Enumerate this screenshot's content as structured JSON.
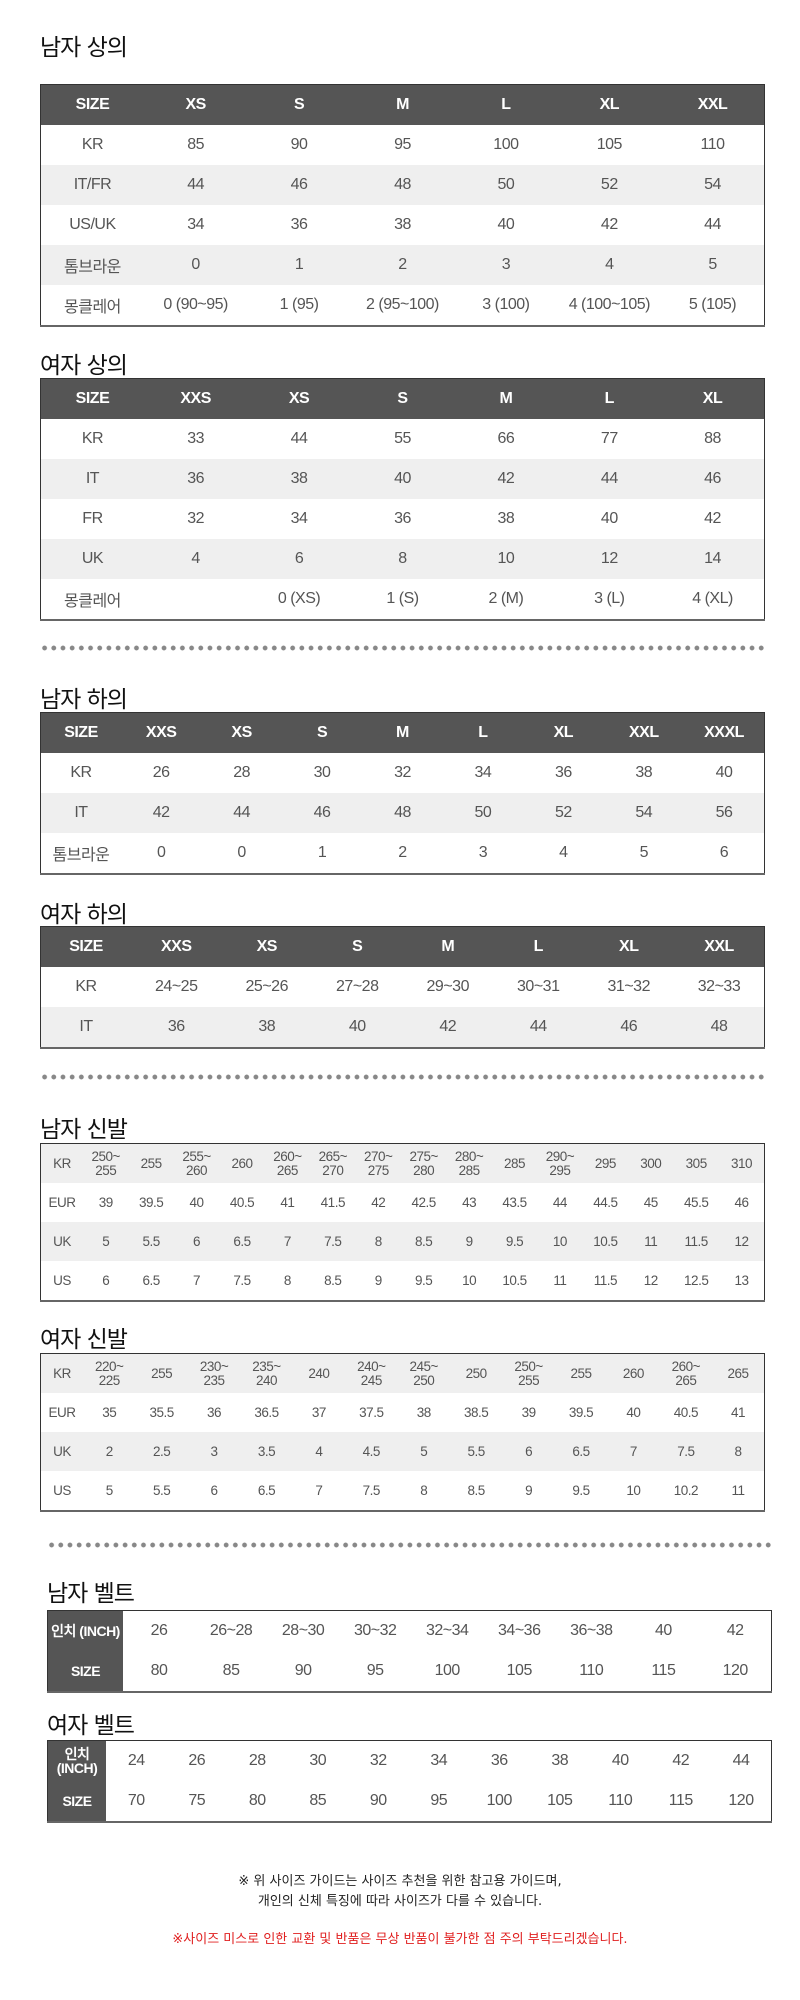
{
  "tables": [
    {
      "title": "남자 상의",
      "kind": "std",
      "header": [
        "SIZE",
        "XS",
        "S",
        "M",
        "L",
        "XL",
        "XXL"
      ],
      "rows": [
        [
          "KR",
          "85",
          "90",
          "95",
          "100",
          "105",
          "110"
        ],
        [
          "IT/FR",
          "44",
          "46",
          "48",
          "50",
          "52",
          "54"
        ],
        [
          "US/UK",
          "34",
          "36",
          "38",
          "40",
          "42",
          "44"
        ],
        [
          "톰브라운",
          "0",
          "1",
          "2",
          "3",
          "4",
          "5"
        ],
        [
          "몽클레어",
          "0 (90~95)",
          "1 (95)",
          "2 (95~100)",
          "3 (100)",
          "4 (100~105)",
          "5 (105)"
        ]
      ]
    },
    {
      "title": "여자 상의",
      "kind": "std",
      "header": [
        "SIZE",
        "XXS",
        "XS",
        "S",
        "M",
        "L",
        "XL"
      ],
      "rows": [
        [
          "KR",
          "33",
          "44",
          "55",
          "66",
          "77",
          "88"
        ],
        [
          "IT",
          "36",
          "38",
          "40",
          "42",
          "44",
          "46"
        ],
        [
          "FR",
          "32",
          "34",
          "36",
          "38",
          "40",
          "42"
        ],
        [
          "UK",
          "4",
          "6",
          "8",
          "10",
          "12",
          "14"
        ],
        [
          "몽클레어",
          "",
          "0 (XS)",
          "1 (S)",
          "2 (M)",
          "3 (L)",
          "4 (XL)"
        ]
      ]
    },
    {
      "title": "남자 하의",
      "kind": "std",
      "header": [
        "SIZE",
        "XXS",
        "XS",
        "S",
        "M",
        "L",
        "XL",
        "XXL",
        "XXXL"
      ],
      "rows": [
        [
          "KR",
          "26",
          "28",
          "30",
          "32",
          "34",
          "36",
          "38",
          "40"
        ],
        [
          "IT",
          "42",
          "44",
          "46",
          "48",
          "50",
          "52",
          "54",
          "56"
        ],
        [
          "톰브라운",
          "0",
          "0",
          "1",
          "2",
          "3",
          "4",
          "5",
          "6"
        ]
      ]
    },
    {
      "title": "여자 하의",
      "kind": "std",
      "header": [
        "SIZE",
        "XXS",
        "XS",
        "S",
        "M",
        "L",
        "XL",
        "XXL"
      ],
      "rows": [
        [
          "KR",
          "24~25",
          "25~26",
          "27~28",
          "29~30",
          "30~31",
          "31~32",
          "32~33"
        ],
        [
          "IT",
          "36",
          "38",
          "40",
          "42",
          "44",
          "46",
          "48"
        ]
      ]
    },
    {
      "title": "남자 신발",
      "kind": "shoe",
      "rows": [
        [
          "KR",
          "250~ 255",
          "255",
          "255~ 260",
          "260",
          "260~ 265",
          "265~ 270",
          "270~ 275",
          "275~ 280",
          "280~ 285",
          "285",
          "290~ 295",
          "295",
          "300",
          "305",
          "310"
        ],
        [
          "EUR",
          "39",
          "39.5",
          "40",
          "40.5",
          "41",
          "41.5",
          "42",
          "42.5",
          "43",
          "43.5",
          "44",
          "44.5",
          "45",
          "45.5",
          "46"
        ],
        [
          "UK",
          "5",
          "5.5",
          "6",
          "6.5",
          "7",
          "7.5",
          "8",
          "8.5",
          "9",
          "9.5",
          "10",
          "10.5",
          "11",
          "11.5",
          "12"
        ],
        [
          "US",
          "6",
          "6.5",
          "7",
          "7.5",
          "8",
          "8.5",
          "9",
          "9.5",
          "10",
          "10.5",
          "11",
          "11.5",
          "12",
          "12.5",
          "13"
        ]
      ]
    },
    {
      "title": "여자 신발",
      "kind": "shoe",
      "rows": [
        [
          "KR",
          "220~ 225",
          "255",
          "230~ 235",
          "235~ 240",
          "240",
          "240~ 245",
          "245~ 250",
          "250",
          "250~ 255",
          "255",
          "260",
          "260~ 265",
          "265"
        ],
        [
          "EUR",
          "35",
          "35.5",
          "36",
          "36.5",
          "37",
          "37.5",
          "38",
          "38.5",
          "39",
          "39.5",
          "40",
          "40.5",
          "41"
        ],
        [
          "UK",
          "2",
          "2.5",
          "3",
          "3.5",
          "4",
          "4.5",
          "5",
          "5.5",
          "6",
          "6.5",
          "7",
          "7.5",
          "8"
        ],
        [
          "US",
          "5",
          "5.5",
          "6",
          "6.5",
          "7",
          "7.5",
          "8",
          "8.5",
          "9",
          "9.5",
          "10",
          "10.2",
          "11"
        ]
      ]
    },
    {
      "title": "남자 벨트",
      "kind": "belt",
      "rows": [
        [
          "인치 (INCH)",
          "26",
          "26~28",
          "28~30",
          "30~32",
          "32~34",
          "34~36",
          "36~38",
          "40",
          "42"
        ],
        [
          "SIZE",
          "80",
          "85",
          "90",
          "95",
          "100",
          "105",
          "110",
          "115",
          "120"
        ]
      ]
    },
    {
      "title": "여자 벨트",
      "kind": "belt",
      "rows": [
        [
          "인치 (INCH)",
          "24",
          "26",
          "28",
          "30",
          "32",
          "34",
          "36",
          "38",
          "40",
          "42",
          "44"
        ],
        [
          "SIZE",
          "70",
          "75",
          "80",
          "85",
          "90",
          "95",
          "100",
          "105",
          "110",
          "115",
          "120"
        ]
      ]
    }
  ],
  "footer": {
    "line1": "※ 위 사이즈 가이드는 사이즈 추천을 위한 참고용 가이드며,",
    "line2": "개인의 신체 특징에 따라 사이즈가 다를 수 있습니다.",
    "warning": "※사이즈 미스로 인한 교환 및 반품은 무상 반품이 불가한 점 주의 부탁드리겠습니다.",
    "warning_color": "#e02020"
  }
}
